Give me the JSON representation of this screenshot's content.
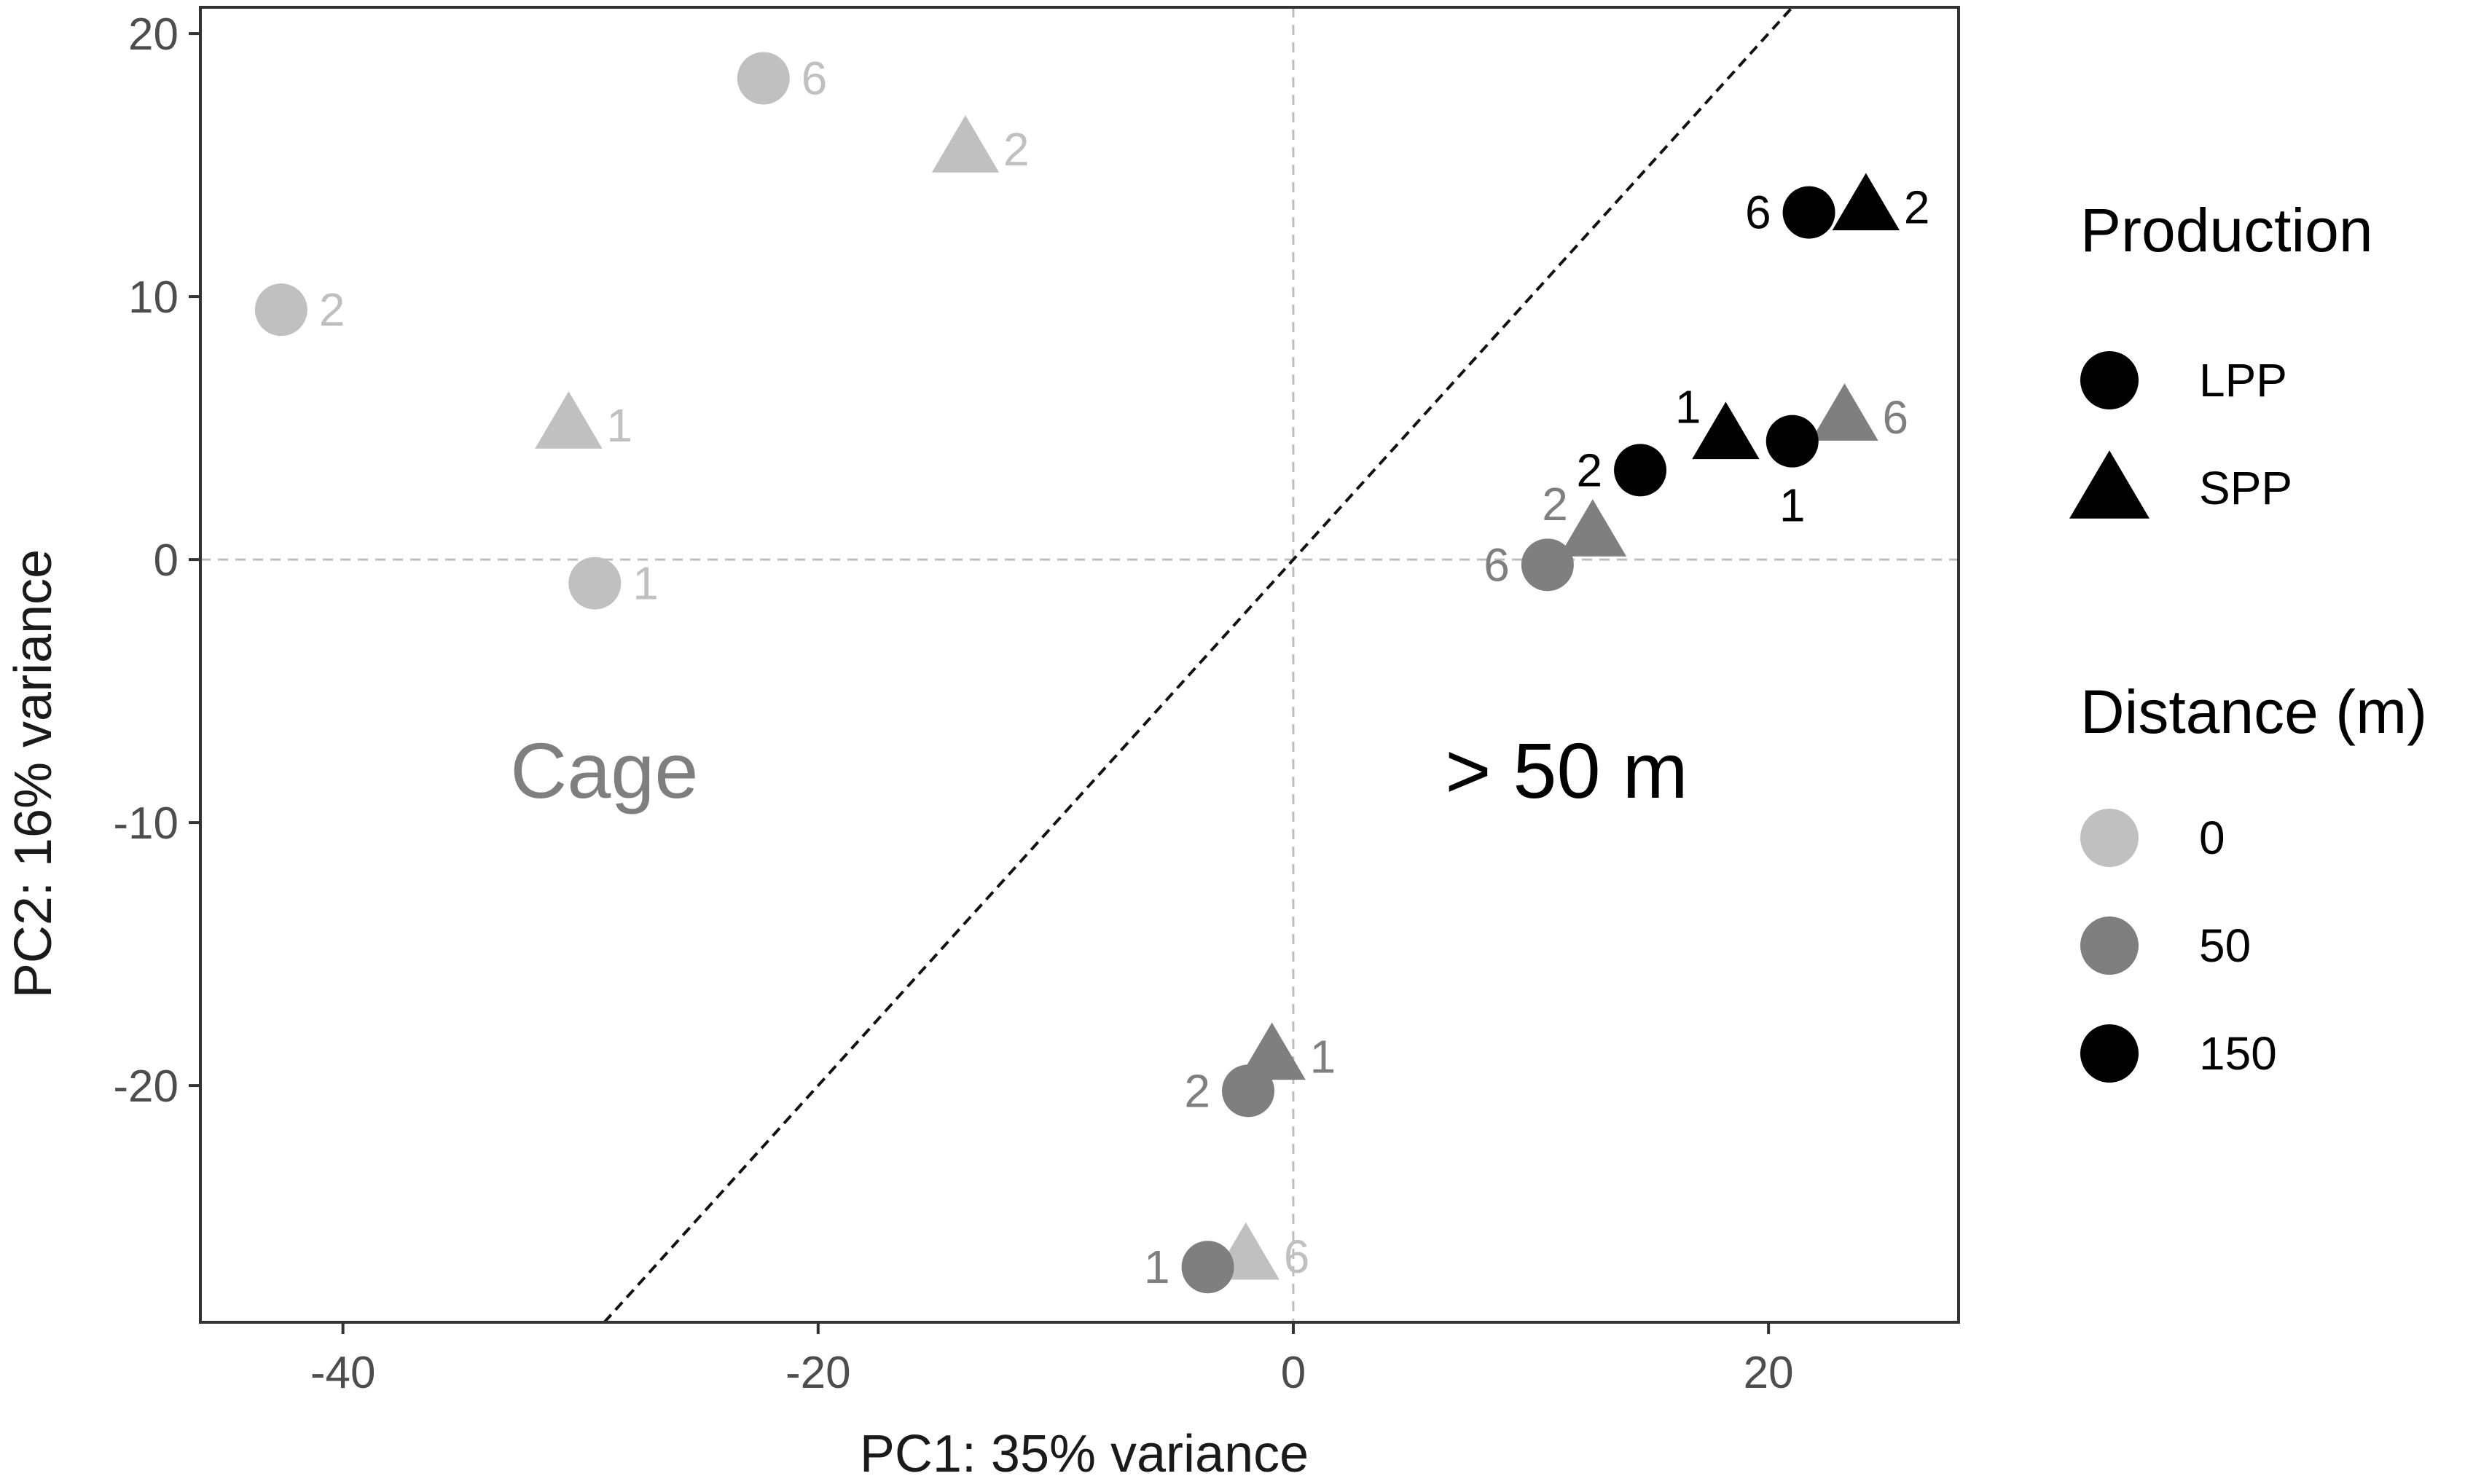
{
  "chart_data": {
    "type": "scatter",
    "title": "",
    "xlabel": "PC1: 35% variance",
    "ylabel": "PC2: 16% variance",
    "xlim": [
      -46,
      28
    ],
    "ylim": [
      -29,
      21
    ],
    "xticks": [
      -40,
      -20,
      0,
      20
    ],
    "yticks": [
      20,
      10,
      0,
      -10,
      -20
    ],
    "grid": false,
    "reference_lines": {
      "x_zero": true,
      "y_zero": true,
      "diagonal": {
        "from": [
          -29,
          -29
        ],
        "to": [
          21,
          21
        ]
      }
    },
    "annotations": [
      {
        "text": "Cage",
        "x": -29,
        "y": -8,
        "color": "#7f7f7f"
      },
      {
        "text": "> 50 m",
        "x": 11.5,
        "y": -8,
        "color": "#000000"
      }
    ],
    "legend": {
      "placement": "right",
      "production": {
        "title": "Production",
        "entries": [
          {
            "label": "LPP",
            "shape": "circle"
          },
          {
            "label": "SPP",
            "shape": "triangle"
          }
        ]
      },
      "distance": {
        "title": "Distance (m)",
        "entries": [
          {
            "label": "0",
            "color": "#c0c0c0"
          },
          {
            "label": "50",
            "color": "#7f7f7f"
          },
          {
            "label": "150",
            "color": "#000000"
          }
        ]
      }
    },
    "colors": {
      "0": "#c0c0c0",
      "50": "#7f7f7f",
      "150": "#000000"
    },
    "points": [
      {
        "x": -22.3,
        "y": 18.3,
        "production": "LPP",
        "distance": "0",
        "label": "6",
        "label_side": "right"
      },
      {
        "x": -13.8,
        "y": 15.6,
        "production": "SPP",
        "distance": "0",
        "label": "2",
        "label_side": "right"
      },
      {
        "x": -42.6,
        "y": 9.5,
        "production": "LPP",
        "distance": "0",
        "label": "2",
        "label_side": "right"
      },
      {
        "x": -30.5,
        "y": 5.1,
        "production": "SPP",
        "distance": "0",
        "label": "1",
        "label_side": "right"
      },
      {
        "x": -29.4,
        "y": -0.9,
        "production": "LPP",
        "distance": "0",
        "label": "1",
        "label_side": "right"
      },
      {
        "x": -2.0,
        "y": -26.5,
        "production": "SPP",
        "distance": "0",
        "label": "6",
        "label_side": "right"
      },
      {
        "x": 10.7,
        "y": -0.2,
        "production": "LPP",
        "distance": "50",
        "label": "6",
        "label_side": "left"
      },
      {
        "x": 12.6,
        "y": 1.0,
        "production": "SPP",
        "distance": "50",
        "label": "2",
        "label_side": "upper-left"
      },
      {
        "x": 23.2,
        "y": 5.4,
        "production": "SPP",
        "distance": "50",
        "label": "6",
        "label_side": "right"
      },
      {
        "x": -0.9,
        "y": -18.9,
        "production": "SPP",
        "distance": "50",
        "label": "1",
        "label_side": "right"
      },
      {
        "x": -1.9,
        "y": -20.2,
        "production": "LPP",
        "distance": "50",
        "label": "2",
        "label_side": "left"
      },
      {
        "x": -3.6,
        "y": -26.9,
        "production": "LPP",
        "distance": "50",
        "label": "1",
        "label_side": "left"
      },
      {
        "x": 21.7,
        "y": 13.2,
        "production": "LPP",
        "distance": "150",
        "label": "6",
        "label_side": "left"
      },
      {
        "x": 24.1,
        "y": 13.4,
        "production": "SPP",
        "distance": "150",
        "label": "2",
        "label_side": "right"
      },
      {
        "x": 18.2,
        "y": 4.7,
        "production": "SPP",
        "distance": "150",
        "label": "1",
        "label_side": "upper-left"
      },
      {
        "x": 21.0,
        "y": 4.5,
        "production": "LPP",
        "distance": "150",
        "label": "1",
        "label_side": "below"
      },
      {
        "x": 14.6,
        "y": 3.4,
        "production": "LPP",
        "distance": "150",
        "label": "2",
        "label_side": "left"
      }
    ]
  }
}
